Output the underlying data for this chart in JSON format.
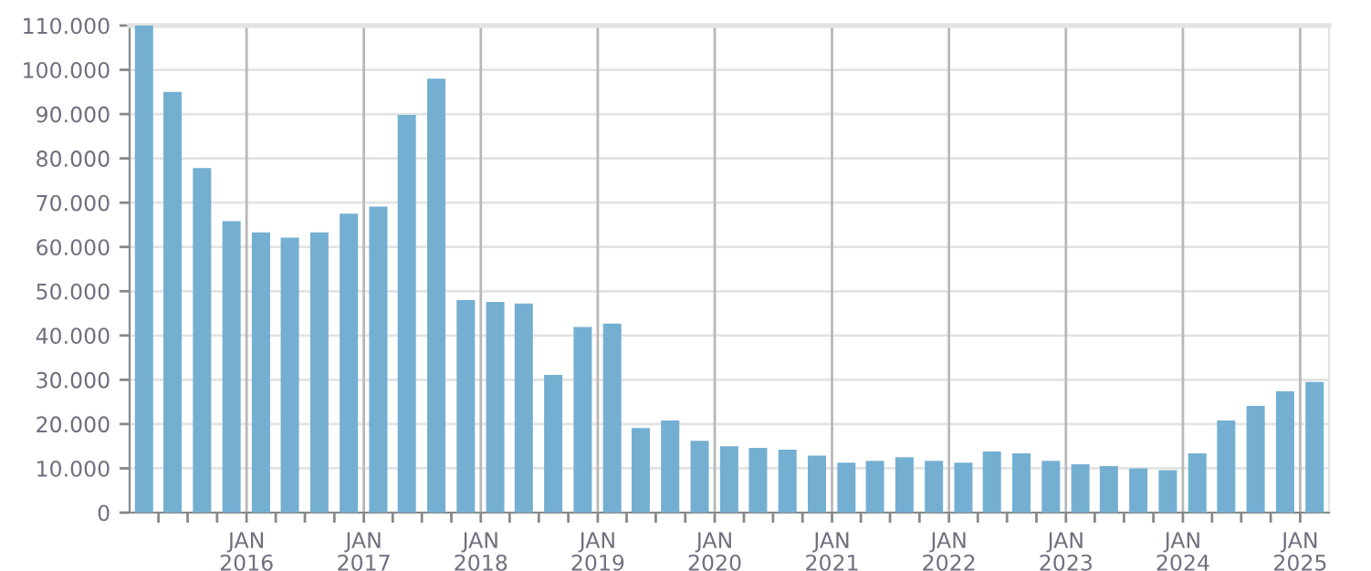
{
  "chart_data": {
    "type": "bar",
    "x": [
      "2015-02-15",
      "2015-05-15",
      "2015-08-15",
      "2015-11-15",
      "2016-02-15",
      "2016-05-15",
      "2016-08-15",
      "2016-11-15",
      "2017-02-15",
      "2017-05-15",
      "2017-08-15",
      "2017-11-15",
      "2018-02-15",
      "2018-05-15",
      "2018-08-15",
      "2018-11-15",
      "2019-02-15",
      "2019-05-15",
      "2019-08-15",
      "2019-11-15",
      "2020-02-15",
      "2020-05-15",
      "2020-08-15",
      "2020-11-15",
      "2021-02-15",
      "2021-05-15",
      "2021-08-15",
      "2021-11-15",
      "2022-02-15",
      "2022-05-15",
      "2022-08-15",
      "2022-11-15",
      "2023-02-15",
      "2023-05-15",
      "2023-08-15",
      "2023-11-15",
      "2024-02-15",
      "2024-05-15",
      "2024-08-15",
      "2024-11-15",
      "2025-02-15"
    ],
    "values": [
      110000,
      95000,
      77800,
      65800,
      63300,
      62100,
      63300,
      67500,
      69100,
      89800,
      98000,
      48000,
      47600,
      47200,
      31100,
      41900,
      42700,
      19100,
      20800,
      16200,
      15000,
      14600,
      14200,
      12900,
      11300,
      11700,
      12500,
      11700,
      11300,
      13800,
      13400,
      11700,
      10900,
      10500,
      10000,
      9600,
      13400,
      20800,
      24100,
      27400,
      29500
    ],
    "color": "#74afd2",
    "xlim": [
      "2015-01-01",
      "2025-04-01"
    ],
    "xticks": [
      {
        "value": "2015-04-01",
        "label": null
      },
      {
        "value": "2015-07-01",
        "label": null
      },
      {
        "value": "2015-10-01",
        "label": null
      },
      {
        "value": "2016-01-01",
        "label": "JAN\n2016"
      },
      {
        "value": "2016-04-01",
        "label": null
      },
      {
        "value": "2016-07-01",
        "label": null
      },
      {
        "value": "2016-10-01",
        "label": null
      },
      {
        "value": "2017-01-01",
        "label": "JAN\n2017"
      },
      {
        "value": "2017-04-01",
        "label": null
      },
      {
        "value": "2017-07-01",
        "label": null
      },
      {
        "value": "2017-10-01",
        "label": null
      },
      {
        "value": "2018-01-01",
        "label": "JAN\n2018"
      },
      {
        "value": "2018-04-01",
        "label": null
      },
      {
        "value": "2018-07-01",
        "label": null
      },
      {
        "value": "2018-10-01",
        "label": null
      },
      {
        "value": "2019-01-01",
        "label": "JAN\n2019"
      },
      {
        "value": "2019-04-01",
        "label": null
      },
      {
        "value": "2019-07-01",
        "label": null
      },
      {
        "value": "2019-10-01",
        "label": null
      },
      {
        "value": "2020-01-01",
        "label": "JAN\n2020"
      },
      {
        "value": "2020-04-01",
        "label": null
      },
      {
        "value": "2020-07-01",
        "label": null
      },
      {
        "value": "2020-10-01",
        "label": null
      },
      {
        "value": "2021-01-01",
        "label": "JAN\n2021"
      },
      {
        "value": "2021-04-01",
        "label": null
      },
      {
        "value": "2021-07-01",
        "label": null
      },
      {
        "value": "2021-10-01",
        "label": null
      },
      {
        "value": "2022-01-01",
        "label": "JAN\n2022"
      },
      {
        "value": "2022-04-01",
        "label": null
      },
      {
        "value": "2022-07-01",
        "label": null
      },
      {
        "value": "2022-10-01",
        "label": null
      },
      {
        "value": "2023-01-01",
        "label": "JAN\n2023"
      },
      {
        "value": "2023-04-01",
        "label": null
      },
      {
        "value": "2023-07-01",
        "label": null
      },
      {
        "value": "2023-10-01",
        "label": null
      },
      {
        "value": "2024-01-01",
        "label": "JAN\n2024"
      },
      {
        "value": "2024-04-01",
        "label": null
      },
      {
        "value": "2024-07-01",
        "label": null
      },
      {
        "value": "2024-10-01",
        "label": null
      },
      {
        "value": "2025-01-01",
        "label": "JAN\n2025"
      }
    ],
    "ylim": [
      0,
      110000
    ],
    "yticks": [
      0,
      {
        "value": 10000,
        "label": "10.000"
      },
      {
        "value": 20000,
        "label": "20.000"
      },
      {
        "value": 30000,
        "label": "30.000"
      },
      {
        "value": 40000,
        "label": "40.000"
      },
      {
        "value": 50000,
        "label": "50.000"
      },
      {
        "value": 60000,
        "label": "60.000"
      },
      {
        "value": 70000,
        "label": "70.000"
      },
      {
        "value": 80000,
        "label": "80.000"
      },
      {
        "value": 90000,
        "label": "90.000"
      },
      {
        "value": 100000,
        "label": "100.000"
      },
      {
        "value": 110000,
        "label": "110.000"
      }
    ],
    "grid": true,
    "legend": false
  }
}
